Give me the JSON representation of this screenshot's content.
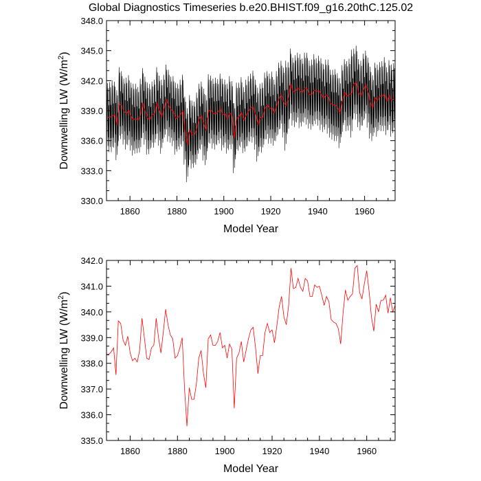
{
  "title": "Global Diagnostics Timeseries b.e20.BHIST.f09_g16.20thC.125.02",
  "colors": {
    "monthly": "#000000",
    "annual": "#ff0000",
    "axis": "#000000",
    "background": "#ffffff"
  },
  "chart_data": [
    {
      "type": "line",
      "panel": "top",
      "xlabel": "Model Year",
      "ylabel": "Downwelling LW (W/m",
      "ylabel_sup": "2",
      "ylabel_tail": ")",
      "xlim": [
        1850,
        1973
      ],
      "ylim": [
        330.0,
        348.0
      ],
      "xticks": [
        1860,
        1880,
        1900,
        1920,
        1940,
        1960
      ],
      "yticks": [
        "330.0",
        "333.0",
        "336.0",
        "339.0",
        "342.0",
        "345.0",
        "348.0"
      ],
      "series": [
        {
          "name": "monthly",
          "color": "#000000",
          "seasonal_amplitude": [
            3.4,
            3.5,
            3.6,
            3.3,
            3.5,
            3.7,
            3.4,
            3.3,
            3.6,
            3.5,
            3.4,
            3.6,
            3.5,
            3.3,
            3.7,
            3.5,
            3.4,
            3.6,
            3.5,
            3.3,
            3.4,
            3.6,
            3.5,
            3.7,
            3.4,
            3.5,
            3.6,
            3.3,
            3.5,
            3.6,
            3.4,
            3.5,
            3.6,
            3.4,
            3.7,
            3.5,
            3.4,
            3.3,
            3.6,
            3.5,
            3.4,
            3.6,
            3.5,
            3.7,
            3.4,
            3.5,
            3.6,
            3.3,
            3.5,
            3.6,
            3.4,
            3.5,
            3.7,
            3.4,
            3.5,
            3.6,
            3.4,
            3.5,
            3.3,
            3.6,
            3.5,
            3.4,
            3.6,
            3.5,
            3.7,
            3.4,
            3.5,
            3.6,
            3.4,
            3.5,
            3.6,
            3.3,
            3.5,
            3.6,
            3.4,
            3.5,
            4.5,
            3.6,
            3.5,
            3.4,
            3.6,
            3.5,
            3.7,
            3.4,
            3.5,
            3.6,
            3.4,
            3.5,
            3.6,
            3.3,
            3.5,
            3.6,
            3.4,
            3.5,
            3.7,
            3.4,
            3.5,
            3.6,
            3.4,
            3.5,
            3.6,
            3.3,
            3.5,
            3.6,
            4.4,
            3.5,
            3.7,
            3.4,
            3.5,
            3.6,
            3.4,
            3.5,
            3.6,
            3.3,
            3.5,
            3.6,
            3.4,
            3.5,
            3.7,
            3.4,
            3.5,
            3.6
          ]
        },
        {
          "name": "annual",
          "color": "#ff0000"
        }
      ]
    },
    {
      "type": "line",
      "panel": "bottom",
      "xlabel": "Model Year",
      "ylabel": "Downwelling LW (W/m",
      "ylabel_sup": "2",
      "ylabel_tail": ")",
      "xlim": [
        1850,
        1972
      ],
      "ylim": [
        335.0,
        342.0
      ],
      "xticks": [
        1860,
        1880,
        1900,
        1920,
        1940,
        1960
      ],
      "yticks": [
        "335.0",
        "336.0",
        "337.0",
        "338.0",
        "339.0",
        "340.0",
        "341.0",
        "342.0"
      ],
      "series": [
        {
          "name": "annual",
          "color": "#ff0000",
          "x": [
            1850,
            1851,
            1852,
            1853,
            1854,
            1855,
            1856,
            1857,
            1858,
            1859,
            1860,
            1861,
            1862,
            1863,
            1864,
            1865,
            1866,
            1867,
            1868,
            1869,
            1870,
            1871,
            1872,
            1873,
            1874,
            1875,
            1876,
            1877,
            1878,
            1879,
            1880,
            1881,
            1882,
            1883,
            1884,
            1885,
            1886,
            1887,
            1888,
            1889,
            1890,
            1891,
            1892,
            1893,
            1894,
            1895,
            1896,
            1897,
            1898,
            1899,
            1900,
            1901,
            1902,
            1903,
            1904,
            1905,
            1906,
            1907,
            1908,
            1909,
            1910,
            1911,
            1912,
            1913,
            1914,
            1915,
            1916,
            1917,
            1918,
            1919,
            1920,
            1921,
            1922,
            1923,
            1924,
            1925,
            1926,
            1927,
            1928,
            1929,
            1930,
            1931,
            1932,
            1933,
            1934,
            1935,
            1936,
            1937,
            1938,
            1939,
            1940,
            1941,
            1942,
            1943,
            1944,
            1945,
            1946,
            1947,
            1948,
            1949,
            1950,
            1951,
            1952,
            1953,
            1954,
            1955,
            1956,
            1957,
            1958,
            1959,
            1960,
            1961,
            1962,
            1963,
            1964,
            1965,
            1966,
            1967,
            1968,
            1969,
            1970,
            1971,
            1972
          ],
          "values": [
            338.35,
            338.35,
            338.45,
            338.6,
            337.55,
            339.65,
            339.55,
            338.9,
            338.7,
            339.05,
            338.4,
            338.1,
            338.2,
            338.05,
            338.5,
            339.75,
            339.0,
            338.2,
            338.15,
            338.6,
            338.7,
            339.75,
            339.0,
            338.4,
            339.2,
            340.1,
            339.5,
            339.1,
            338.95,
            338.2,
            338.3,
            338.6,
            339.0,
            337.0,
            335.55,
            337.05,
            336.6,
            336.6,
            337.2,
            338.2,
            338.5,
            337.6,
            337.05,
            338.95,
            339.1,
            338.7,
            338.7,
            338.85,
            339.2,
            338.6,
            338.7,
            338.2,
            338.75,
            338.55,
            336.25,
            338.2,
            338.4,
            338.85,
            338.05,
            338.5,
            338.95,
            339.3,
            339.4,
            338.6,
            337.6,
            338.3,
            338.3,
            339.2,
            339.55,
            339.2,
            339.3,
            338.8,
            339.45,
            340.2,
            340.6,
            339.8,
            339.5,
            340.25,
            341.7,
            340.9,
            340.95,
            341.3,
            340.95,
            340.8,
            341.3,
            341.2,
            340.6,
            340.6,
            341.05,
            340.95,
            341.0,
            340.65,
            340.25,
            340.6,
            340.4,
            339.7,
            339.6,
            339.55,
            339.35,
            338.75,
            339.95,
            340.85,
            340.45,
            340.6,
            340.7,
            341.7,
            341.8,
            340.75,
            340.5,
            341.1,
            341.6,
            340.8,
            339.8,
            339.25,
            340.3,
            340.0,
            340.45,
            340.45,
            340.65,
            339.95,
            340.55,
            340.0,
            340.25
          ]
        }
      ]
    }
  ]
}
